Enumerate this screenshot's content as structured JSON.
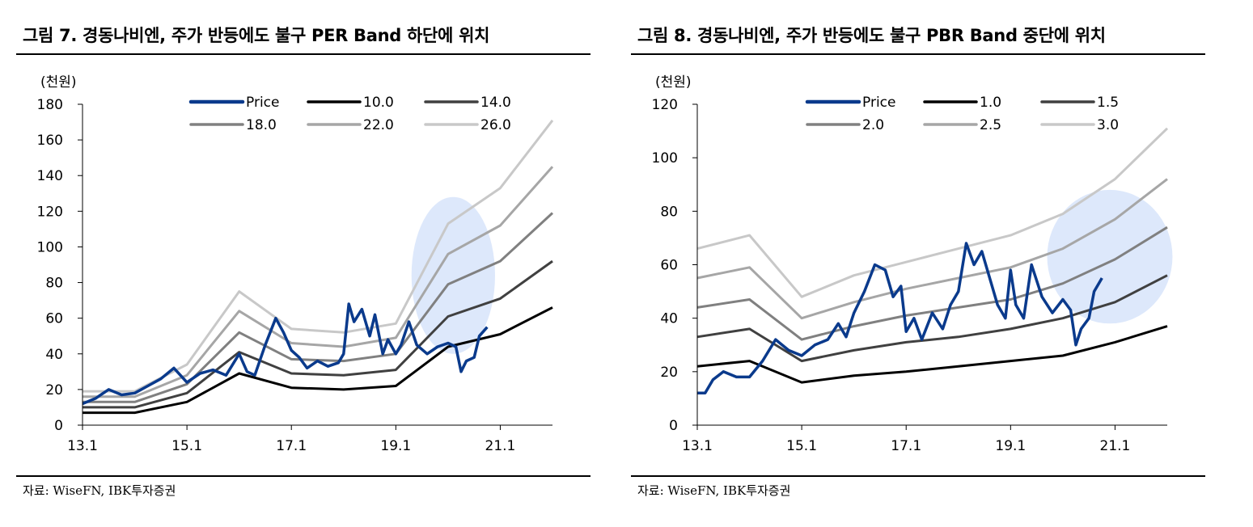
{
  "chart_data": [
    {
      "type": "line",
      "title": "그림 7. 경동나비엔, 주가 반등에도 불구 PER Band 하단에 위치",
      "unit_label": "(천원)",
      "source": "자료: WiseFN, IBK투자증권",
      "ylim": [
        0,
        180
      ],
      "yticks": [
        "0",
        "20",
        "40",
        "60",
        "80",
        "100",
        "120",
        "140",
        "160",
        "180"
      ],
      "xlim": [
        2013.0,
        2022.0
      ],
      "xticks": [
        "13.1",
        "15.1",
        "17.1",
        "19.1",
        "21.1"
      ],
      "xtick_values": [
        2013.0,
        2015.0,
        2017.0,
        2019.0,
        2021.0
      ],
      "legend": "top",
      "colors": {
        "Price": "#0a3a8c",
        "10.0": "#000000",
        "14.0": "#404040",
        "18.0": "#808080",
        "22.0": "#a6a6a6",
        "26.0": "#c8c8c8"
      },
      "highlight": {
        "cx": 2020.1,
        "cy": 84,
        "rx": 0.8,
        "ry": 44,
        "color": "#dde8fb"
      },
      "band_x": [
        2013.0,
        2014.0,
        2015.0,
        2016.0,
        2017.0,
        2018.0,
        2019.0,
        2020.0,
        2021.0,
        2022.0
      ],
      "series": [
        {
          "name": "10.0",
          "values": [
            7,
            7,
            13,
            29,
            21,
            20,
            22,
            44,
            51,
            66
          ]
        },
        {
          "name": "14.0",
          "values": [
            10,
            10,
            18,
            41,
            29,
            28,
            31,
            61,
            71,
            92
          ]
        },
        {
          "name": "18.0",
          "values": [
            13,
            13,
            23,
            52,
            37,
            36,
            40,
            79,
            92,
            119
          ]
        },
        {
          "name": "22.0",
          "values": [
            16,
            16,
            28,
            64,
            46,
            44,
            49,
            96,
            112,
            145
          ]
        },
        {
          "name": "26.0",
          "values": [
            19,
            19,
            34,
            75,
            54,
            52,
            57,
            113,
            133,
            171
          ]
        }
      ],
      "price": {
        "name": "Price",
        "x": [
          2013.0,
          2013.25,
          2013.5,
          2013.75,
          2014.0,
          2014.25,
          2014.5,
          2014.75,
          2015.0,
          2015.25,
          2015.5,
          2015.75,
          2016.0,
          2016.15,
          2016.3,
          2016.5,
          2016.7,
          2016.85,
          2017.0,
          2017.15,
          2017.3,
          2017.5,
          2017.7,
          2017.9,
          2018.0,
          2018.1,
          2018.2,
          2018.35,
          2018.5,
          2018.6,
          2018.75,
          2018.85,
          2019.0,
          2019.1,
          2019.25,
          2019.4,
          2019.6,
          2019.8,
          2020.0,
          2020.15,
          2020.25,
          2020.35,
          2020.5,
          2020.6,
          2020.75
        ],
        "values": [
          12,
          15,
          20,
          17,
          18,
          22,
          26,
          32,
          24,
          29,
          31,
          28,
          40,
          30,
          28,
          45,
          60,
          52,
          42,
          38,
          32,
          36,
          33,
          35,
          40,
          68,
          58,
          65,
          50,
          62,
          40,
          48,
          40,
          45,
          58,
          45,
          40,
          44,
          46,
          44,
          30,
          36,
          38,
          50,
          55
        ]
      }
    },
    {
      "type": "line",
      "title": "그림 8. 경동나비엔, 주가 반등에도 불구 PBR Band 중단에 위치",
      "unit_label": "(천원)",
      "source": "자료: WiseFN, IBK투자증권",
      "ylim": [
        0,
        120
      ],
      "yticks": [
        "0",
        "20",
        "40",
        "60",
        "80",
        "100",
        "120"
      ],
      "xlim": [
        2013.0,
        2022.0
      ],
      "xticks": [
        "13.1",
        "15.1",
        "17.1",
        "19.1",
        "21.1"
      ],
      "xtick_values": [
        2013.0,
        2015.0,
        2017.0,
        2019.0,
        2021.0
      ],
      "legend": "top",
      "colors": {
        "Price": "#0a3a8c",
        "1.0": "#000000",
        "1.5": "#404040",
        "2.0": "#808080",
        "2.5": "#a6a6a6",
        "3.0": "#c8c8c8"
      },
      "highlight": {
        "cx": 2020.9,
        "cy": 63,
        "rx": 1.2,
        "ry": 25,
        "color": "#dde8fb"
      },
      "band_x": [
        2013.0,
        2014.0,
        2015.0,
        2016.0,
        2017.0,
        2018.0,
        2019.0,
        2020.0,
        2021.0,
        2022.0
      ],
      "series": [
        {
          "name": "1.0",
          "values": [
            22,
            24,
            16,
            18.5,
            20,
            22,
            24,
            26,
            31,
            37
          ]
        },
        {
          "name": "1.5",
          "values": [
            33,
            36,
            24,
            28,
            31,
            33,
            36,
            40,
            46,
            56
          ]
        },
        {
          "name": "2.0",
          "values": [
            44,
            47,
            32,
            37,
            41,
            44,
            47,
            53,
            62,
            74
          ]
        },
        {
          "name": "2.5",
          "values": [
            55,
            59,
            40,
            46,
            51,
            55,
            59,
            66,
            77,
            92
          ]
        },
        {
          "name": "3.0",
          "values": [
            66,
            71,
            48,
            56,
            61,
            66,
            71,
            79,
            92,
            111
          ]
        }
      ],
      "price": {
        "name": "Price",
        "x": [
          2013.0,
          2013.15,
          2013.3,
          2013.5,
          2013.75,
          2014.0,
          2014.25,
          2014.5,
          2014.75,
          2015.0,
          2015.25,
          2015.5,
          2015.7,
          2015.85,
          2016.0,
          2016.2,
          2016.4,
          2016.6,
          2016.75,
          2016.9,
          2017.0,
          2017.15,
          2017.3,
          2017.5,
          2017.7,
          2017.85,
          2018.0,
          2018.15,
          2018.3,
          2018.45,
          2018.6,
          2018.75,
          2018.9,
          2019.0,
          2019.1,
          2019.25,
          2019.4,
          2019.6,
          2019.8,
          2020.0,
          2020.15,
          2020.25,
          2020.35,
          2020.5,
          2020.6,
          2020.75
        ],
        "values": [
          12,
          12,
          17,
          20,
          18,
          18,
          24,
          32,
          28,
          26,
          30,
          32,
          38,
          33,
          42,
          50,
          60,
          58,
          48,
          52,
          35,
          40,
          32,
          42,
          36,
          45,
          50,
          68,
          60,
          65,
          55,
          45,
          40,
          58,
          45,
          40,
          60,
          48,
          42,
          47,
          43,
          30,
          36,
          40,
          50,
          55
        ]
      }
    }
  ]
}
